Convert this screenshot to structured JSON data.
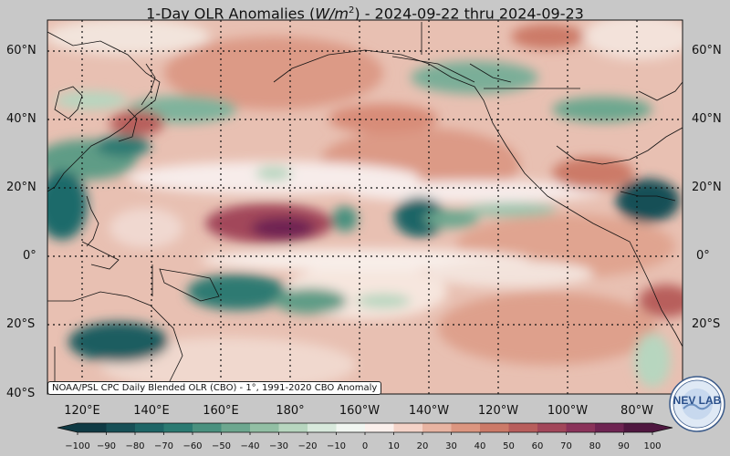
{
  "title": {
    "prefix": "1-Day OLR Anomalies (",
    "unit_base": "W/m",
    "unit_exp": "2",
    "suffix": ") - 2024-09-22 thru 2024-09-23"
  },
  "source_note": "NOAA/PSL CPC Daily Blended OLR (CBO) - 1°, 1991-2020 CBO Anomaly",
  "lat_labels": [
    "60°N",
    "40°N",
    "20°N",
    "0°",
    "20°S",
    "40°S"
  ],
  "lon_labels": [
    "120°E",
    "140°E",
    "160°E",
    "180°",
    "160°W",
    "140°W",
    "120°W",
    "100°W",
    "80°W"
  ],
  "colorbar": {
    "ticks": [
      "−100",
      "−90",
      "−80",
      "−70",
      "−60",
      "−50",
      "−40",
      "−30",
      "−20",
      "−10",
      "0",
      "10",
      "20",
      "30",
      "40",
      "50",
      "60",
      "70",
      "80",
      "90",
      "100"
    ],
    "colors": [
      "#0f3a44",
      "#174f56",
      "#1e6566",
      "#2b7a72",
      "#4a917f",
      "#6da78f",
      "#92bfa4",
      "#b7d6bf",
      "#d8e9dc",
      "#f1f6f1",
      "#fbf0ec",
      "#f4d3c8",
      "#e8b4a2",
      "#dc9680",
      "#cc7a68",
      "#b85e5c",
      "#a2475a",
      "#8a335a",
      "#6e2452",
      "#4f1740"
    ]
  },
  "logo_text": "NEV LAB"
}
